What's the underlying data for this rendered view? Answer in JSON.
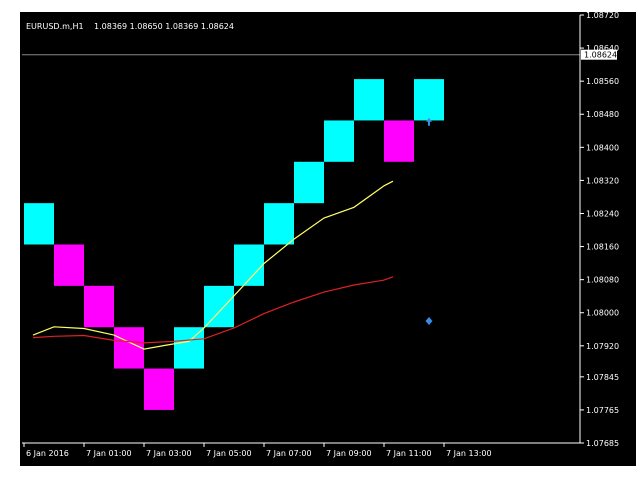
{
  "header": {
    "symbol_label": "EURUSD.m,H1",
    "ohlc_label": "1.08369 1.08650 1.08369 1.08624"
  },
  "chart_data": {
    "type": "renko",
    "symbol": "EURUSD.m",
    "timeframe": "H1",
    "ohlc": {
      "open": 1.08369,
      "high": 1.0865,
      "low": 1.08369,
      "close": 1.08624
    },
    "bid_price_label": "1.08624",
    "bid_price": 1.08624,
    "y_axis": {
      "ylim": [
        1.07685,
        1.0872
      ],
      "ticks": [
        {
          "label": "1.08720",
          "value": 1.0872
        },
        {
          "label": "1.08640",
          "value": 1.0864
        },
        {
          "label": "1.08560",
          "value": 1.0856
        },
        {
          "label": "1.08480",
          "value": 1.0848
        },
        {
          "label": "1.08400",
          "value": 1.084
        },
        {
          "label": "1.08320",
          "value": 1.0832
        },
        {
          "label": "1.08240",
          "value": 1.0824
        },
        {
          "label": "1.08160",
          "value": 1.0816
        },
        {
          "label": "1.08080",
          "value": 1.0808
        },
        {
          "label": "1.08000",
          "value": 1.08
        },
        {
          "label": "1.07920",
          "value": 1.0792
        },
        {
          "label": "1.07845",
          "value": 1.07845
        },
        {
          "label": "1.07765",
          "value": 1.07765
        },
        {
          "label": "1.07685",
          "value": 1.07685
        }
      ]
    },
    "x_axis": {
      "xlim": [
        0,
        14
      ],
      "ticks": [
        {
          "label": "6 Jan 2016",
          "value": 0
        },
        {
          "label": "7 Jan 01:00",
          "value": 2
        },
        {
          "label": "7 Jan 03:00",
          "value": 4
        },
        {
          "label": "7 Jan 05:00",
          "value": 6
        },
        {
          "label": "7 Jan 07:00",
          "value": 8
        },
        {
          "label": "7 Jan 09:00",
          "value": 10
        },
        {
          "label": "7 Jan 11:00",
          "value": 12
        },
        {
          "label": "7 Jan 13:00",
          "value": 14
        }
      ]
    },
    "bricks": [
      {
        "x": 0,
        "low": 1.08165,
        "high": 1.08265,
        "direction": "up"
      },
      {
        "x": 1,
        "low": 1.08065,
        "high": 1.08165,
        "direction": "down"
      },
      {
        "x": 2,
        "low": 1.07965,
        "high": 1.08065,
        "direction": "down"
      },
      {
        "x": 3,
        "low": 1.07865,
        "high": 1.07965,
        "direction": "down"
      },
      {
        "x": 4,
        "low": 1.07765,
        "high": 1.07865,
        "direction": "down"
      },
      {
        "x": 5,
        "low": 1.07865,
        "high": 1.07965,
        "direction": "up"
      },
      {
        "x": 6,
        "low": 1.07965,
        "high": 1.08065,
        "direction": "up"
      },
      {
        "x": 7,
        "low": 1.08065,
        "high": 1.08165,
        "direction": "up"
      },
      {
        "x": 8,
        "low": 1.08165,
        "high": 1.08265,
        "direction": "up"
      },
      {
        "x": 9,
        "low": 1.08265,
        "high": 1.08365,
        "direction": "up"
      },
      {
        "x": 10,
        "low": 1.08365,
        "high": 1.08465,
        "direction": "up"
      },
      {
        "x": 11,
        "low": 1.08465,
        "high": 1.08565,
        "direction": "up"
      },
      {
        "x": 12,
        "low": 1.08365,
        "high": 1.08465,
        "direction": "down"
      },
      {
        "x": 13,
        "low": 1.08465,
        "high": 1.08565,
        "direction": "up"
      }
    ],
    "series": [
      {
        "color": "#ffff66",
        "points": [
          [
            0.3,
            1.07946
          ],
          [
            1.0,
            1.07966
          ],
          [
            2.0,
            1.07962
          ],
          [
            3.0,
            1.07946
          ],
          [
            4.0,
            1.07912
          ],
          [
            4.7,
            1.07921
          ],
          [
            5.5,
            1.07931
          ],
          [
            6.0,
            1.07963
          ],
          [
            7.0,
            1.08041
          ],
          [
            8.0,
            1.08119
          ],
          [
            9.0,
            1.08178
          ],
          [
            10.0,
            1.08229
          ],
          [
            11.0,
            1.08255
          ],
          [
            12.0,
            1.08307
          ],
          [
            12.3,
            1.08318
          ]
        ]
      },
      {
        "color": "#dd2222",
        "points": [
          [
            0.3,
            1.0794
          ],
          [
            1.0,
            1.07943
          ],
          [
            2.0,
            1.07945
          ],
          [
            3.0,
            1.07933
          ],
          [
            4.0,
            1.07927
          ],
          [
            5.0,
            1.07931
          ],
          [
            6.0,
            1.07937
          ],
          [
            7.0,
            1.07963
          ],
          [
            8.0,
            1.07998
          ],
          [
            9.0,
            1.08026
          ],
          [
            10.0,
            1.0805
          ],
          [
            11.0,
            1.08067
          ],
          [
            12.0,
            1.08079
          ],
          [
            12.3,
            1.08087
          ]
        ]
      }
    ],
    "markers": [
      {
        "shape": "arrow-up",
        "x": 13.0,
        "y": 1.08462,
        "color": "#3a8be8"
      },
      {
        "shape": "diamond",
        "x": 13.0,
        "y": 1.0798,
        "color": "#3a8be8"
      }
    ],
    "colors": {
      "background": "#000000",
      "up_brick": "#00ffff",
      "down_brick": "#ff00ff",
      "axis_text": "#ffffff",
      "price_line": "#888888"
    },
    "grid": false,
    "legend": "none"
  }
}
